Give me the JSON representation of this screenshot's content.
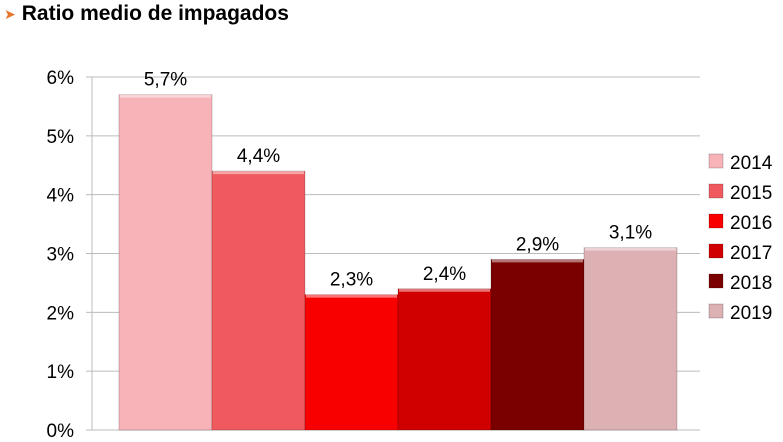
{
  "header": {
    "arrow_glyph": "➤",
    "title": "Ratio medio de impagados"
  },
  "chart_data": {
    "type": "bar",
    "title": "Ratio medio de impagados",
    "xlabel": "",
    "ylabel": "",
    "ylim": [
      0,
      6
    ],
    "y_ticks": [
      "0%",
      "1%",
      "2%",
      "3%",
      "4%",
      "5%",
      "6%"
    ],
    "grid": true,
    "legend_position": "right",
    "categories": [
      "2014",
      "2015",
      "2016",
      "2017",
      "2018",
      "2019"
    ],
    "values": [
      5.7,
      4.4,
      2.3,
      2.4,
      2.9,
      3.1
    ],
    "data_labels": [
      "5,7%",
      "4,4%",
      "2,3%",
      "2,4%",
      "2,9%",
      "3,1%"
    ],
    "colors": [
      "#f7b3b8",
      "#f05a5e",
      "#f80000",
      "#d10000",
      "#7a0000",
      "#ddb0b4"
    ]
  }
}
